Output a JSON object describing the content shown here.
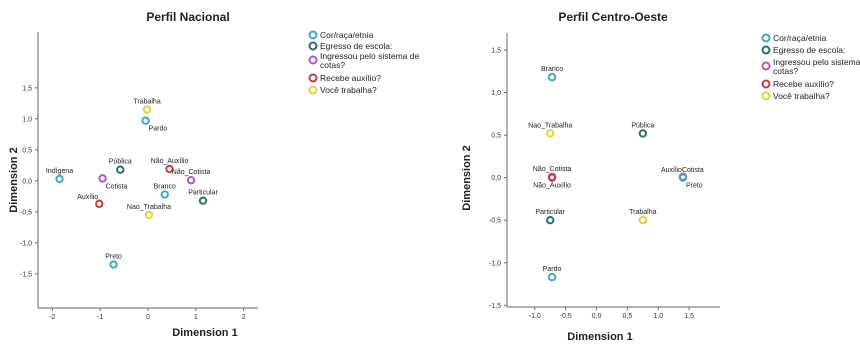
{
  "legend_colors": {
    "cor": "#3fa7c9",
    "egresso": "#2b6f6b",
    "cotas": "#b259c6",
    "auxilio": "#c93a3a",
    "trabalho": "#e3d23a"
  },
  "chart_data": [
    {
      "type": "scatter",
      "title": "Perfil Nacional",
      "xlabel": "Dimension 1",
      "ylabel": "Dimension 2",
      "xlim": [
        -2.3,
        2.3
      ],
      "ylim": [
        -2.05,
        2.4
      ],
      "xticks": [
        {
          "v": -2,
          "t": "-2"
        },
        {
          "v": -1,
          "t": "-1"
        },
        {
          "v": 0,
          "t": "0"
        },
        {
          "v": 1,
          "t": "1"
        },
        {
          "v": 2,
          "t": "2"
        }
      ],
      "yticks": [
        {
          "v": 1.5,
          "t": "1,5"
        },
        {
          "v": 1.0,
          "t": "1,0"
        },
        {
          "v": 0.5,
          "t": "0,5"
        },
        {
          "v": 0.0,
          "t": "0,0"
        },
        {
          "v": -0.5,
          "t": "-0,5"
        },
        {
          "v": -1.0,
          "t": "-1,0"
        },
        {
          "v": -1.5,
          "t": "-1,5"
        }
      ],
      "legend": [
        "Cor/raça/etnia",
        "Egresso de escola:",
        "Ingressou pelo sistema de cotas?",
        "Recebe auxílio?",
        "Você trabalha?"
      ],
      "points": [
        {
          "label": "Trabalha",
          "x": -0.02,
          "y": 1.15,
          "series": "trabalho",
          "pos": "above"
        },
        {
          "label": "Pardo",
          "x": -0.05,
          "y": 0.97,
          "series": "cor",
          "pos": "below-right"
        },
        {
          "label": "Indígena",
          "x": -1.85,
          "y": 0.03,
          "series": "cor",
          "pos": "above"
        },
        {
          "label": "Pública",
          "x": -0.58,
          "y": 0.18,
          "series": "egresso",
          "pos": "above"
        },
        {
          "label": "Cotista",
          "x": -0.95,
          "y": 0.04,
          "series": "cotas",
          "pos": "below-right"
        },
        {
          "label": "Auxílio",
          "x": -1.02,
          "y": -0.37,
          "series": "auxilio",
          "pos": "above-left"
        },
        {
          "label": "Não_Auxílio",
          "x": 0.45,
          "y": 0.19,
          "series": "auxilio",
          "pos": "above"
        },
        {
          "label": "Não_Cotista",
          "x": 0.9,
          "y": 0.01,
          "series": "cotas",
          "pos": "above"
        },
        {
          "label": "Branco",
          "x": 0.35,
          "y": -0.22,
          "series": "cor",
          "pos": "above"
        },
        {
          "label": "Particular",
          "x": 1.15,
          "y": -0.32,
          "series": "egresso",
          "pos": "above"
        },
        {
          "label": "Nao_Trabalha",
          "x": 0.02,
          "y": -0.55,
          "series": "trabalho",
          "pos": "above"
        },
        {
          "label": "Preto",
          "x": -0.72,
          "y": -1.35,
          "series": "cor",
          "pos": "above"
        }
      ]
    },
    {
      "type": "scatter",
      "title": "Perfil Centro-Oeste",
      "xlabel": "Dimension 1",
      "ylabel": "Dimension 2",
      "xlim": [
        -1.45,
        2.0
      ],
      "ylim": [
        -1.52,
        1.7
      ],
      "xticks": [
        {
          "v": -1.0,
          "t": "-1,0"
        },
        {
          "v": -0.5,
          "t": "-0,5"
        },
        {
          "v": 0.0,
          "t": "0,0"
        },
        {
          "v": 0.5,
          "t": "0,5"
        },
        {
          "v": 1.0,
          "t": "1,0"
        },
        {
          "v": 1.5,
          "t": "1,5"
        }
      ],
      "yticks": [
        {
          "v": 1.5,
          "t": "1,5"
        },
        {
          "v": 1.0,
          "t": "1,0"
        },
        {
          "v": 0.5,
          "t": "0,5"
        },
        {
          "v": 0.0,
          "t": "0,0"
        },
        {
          "v": -0.5,
          "t": "-0,5"
        },
        {
          "v": -1.0,
          "t": "-1,0"
        },
        {
          "v": -1.5,
          "t": "-1,5"
        }
      ],
      "legend": [
        "Cor/raça/etnia",
        "Egresso de escola:",
        "Ingressou pelo sistema de cotas?",
        "Recebe auxílio?",
        "Você trabalha?"
      ],
      "points": [
        {
          "label": "Branco",
          "x": -0.72,
          "y": 1.18,
          "series": "cor",
          "pos": "above"
        },
        {
          "label": "Nao_Trabalha",
          "x": -0.75,
          "y": 0.52,
          "series": "trabalho",
          "pos": "above"
        },
        {
          "label": "Pública",
          "x": 0.75,
          "y": 0.52,
          "series": "egresso",
          "pos": "above"
        },
        {
          "label": "Não_Cotista",
          "x": -0.72,
          "y": 0.01,
          "series": "cotas",
          "pos": "above"
        },
        {
          "label": "Não_Auxílio",
          "x": -0.72,
          "y": 0.0,
          "series": "auxilio",
          "pos": "below"
        },
        {
          "label": "Auxílio",
          "x": 1.4,
          "y": 0.01,
          "series": "auxilio",
          "pos": "above-left"
        },
        {
          "label": "Cotista",
          "x": 1.4,
          "y": 0.01,
          "series": "cotas",
          "pos": "above-right"
        },
        {
          "label": "Preto",
          "x": 1.4,
          "y": 0.0,
          "series": "cor",
          "pos": "below-right"
        },
        {
          "label": "Particular",
          "x": -0.75,
          "y": -0.5,
          "series": "egresso",
          "pos": "above"
        },
        {
          "label": "Trabalha",
          "x": 0.75,
          "y": -0.5,
          "series": "trabalho",
          "pos": "above"
        },
        {
          "label": "Pardo",
          "x": -0.72,
          "y": -1.17,
          "series": "cor",
          "pos": "above"
        }
      ]
    }
  ]
}
